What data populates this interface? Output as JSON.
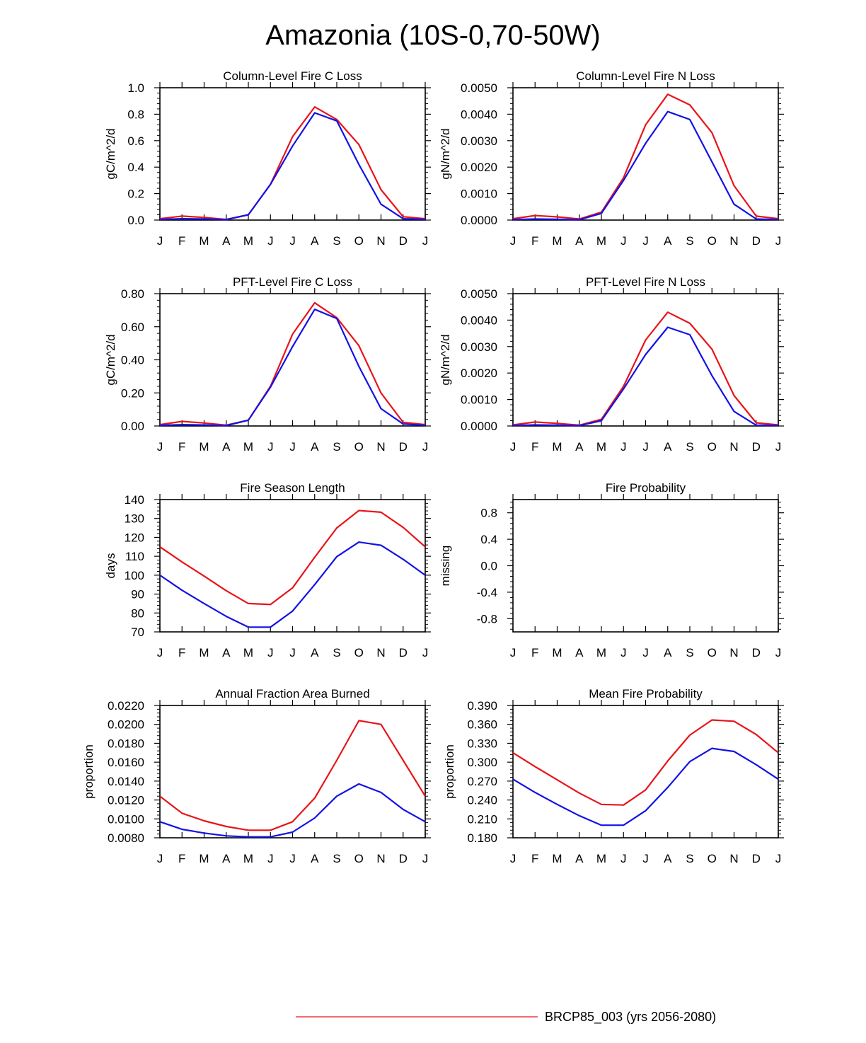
{
  "title": "Amazonia (10S-0,70-50W)",
  "colors": {
    "red": "#e8141a",
    "blue": "#1212e6",
    "axis": "#000000"
  },
  "legend": {
    "label": "BRCP85_003 (yrs 2056-2080)",
    "color": "#e8141a"
  },
  "chart_data": [
    {
      "id": "col-c-loss",
      "type": "line",
      "title": "Column-Level Fire C Loss",
      "ylabel": "gC/m^2/d",
      "xlabel": "",
      "categories": [
        "J",
        "F",
        "M",
        "A",
        "M",
        "J",
        "J",
        "A",
        "S",
        "O",
        "N",
        "D",
        "J"
      ],
      "ylim": [
        0,
        1.0
      ],
      "yticks": [
        "0.0",
        "0.2",
        "0.4",
        "0.6",
        "0.8",
        "1.0"
      ],
      "series": [
        {
          "name": "red",
          "color": "#e8141a",
          "values": [
            0.01,
            0.03,
            0.02,
            0.005,
            0.04,
            0.27,
            0.63,
            0.855,
            0.76,
            0.57,
            0.23,
            0.025,
            0.01
          ]
        },
        {
          "name": "blue",
          "color": "#1212e6",
          "values": [
            0.005,
            0.01,
            0.008,
            0.003,
            0.04,
            0.27,
            0.56,
            0.81,
            0.75,
            0.42,
            0.12,
            0.01,
            0.005
          ]
        }
      ]
    },
    {
      "id": "col-n-loss",
      "type": "line",
      "title": "Column-Level Fire N Loss",
      "ylabel": "gN/m^2/d",
      "xlabel": "",
      "categories": [
        "J",
        "F",
        "M",
        "A",
        "M",
        "J",
        "J",
        "A",
        "S",
        "O",
        "N",
        "D",
        "J"
      ],
      "ylim": [
        0,
        0.005
      ],
      "yticks": [
        "0.0000",
        "0.0010",
        "0.0020",
        "0.0030",
        "0.0040",
        "0.0050"
      ],
      "series": [
        {
          "name": "red",
          "color": "#e8141a",
          "values": [
            5e-05,
            0.00017,
            0.00012,
            4e-05,
            0.0003,
            0.0016,
            0.0036,
            0.00475,
            0.00435,
            0.0033,
            0.0013,
            0.00015,
            5e-05
          ]
        },
        {
          "name": "blue",
          "color": "#1212e6",
          "values": [
            2e-05,
            4e-05,
            3e-05,
            1e-05,
            0.00025,
            0.0015,
            0.0029,
            0.0041,
            0.0038,
            0.0022,
            0.0006,
            4e-05,
            2e-05
          ]
        }
      ]
    },
    {
      "id": "pft-c-loss",
      "type": "line",
      "title": "PFT-Level Fire C Loss",
      "ylabel": "gC/m^2/d",
      "xlabel": "",
      "categories": [
        "J",
        "F",
        "M",
        "A",
        "M",
        "J",
        "J",
        "A",
        "S",
        "O",
        "N",
        "D",
        "J"
      ],
      "ylim": [
        0,
        0.8
      ],
      "yticks": [
        "0.00",
        "0.20",
        "0.40",
        "0.60",
        "0.80"
      ],
      "series": [
        {
          "name": "red",
          "color": "#e8141a",
          "values": [
            0.008,
            0.028,
            0.018,
            0.005,
            0.035,
            0.24,
            0.555,
            0.745,
            0.655,
            0.485,
            0.2,
            0.022,
            0.008
          ]
        },
        {
          "name": "blue",
          "color": "#1212e6",
          "values": [
            0.004,
            0.008,
            0.006,
            0.002,
            0.035,
            0.235,
            0.48,
            0.705,
            0.65,
            0.36,
            0.105,
            0.012,
            0.004
          ]
        }
      ]
    },
    {
      "id": "pft-n-loss",
      "type": "line",
      "title": "PFT-Level Fire N Loss",
      "ylabel": "gN/m^2/d",
      "xlabel": "",
      "categories": [
        "J",
        "F",
        "M",
        "A",
        "M",
        "J",
        "J",
        "A",
        "S",
        "O",
        "N",
        "D",
        "J"
      ],
      "ylim": [
        0,
        0.005
      ],
      "yticks": [
        "0.0000",
        "0.0010",
        "0.0020",
        "0.0030",
        "0.0040",
        "0.0050"
      ],
      "series": [
        {
          "name": "red",
          "color": "#e8141a",
          "values": [
            4e-05,
            0.00015,
            0.0001,
            3e-05,
            0.00025,
            0.0015,
            0.00325,
            0.0043,
            0.00388,
            0.0029,
            0.00115,
            0.00012,
            4e-05
          ]
        },
        {
          "name": "blue",
          "color": "#1212e6",
          "values": [
            2e-05,
            4e-05,
            3e-05,
            1e-05,
            0.0002,
            0.0014,
            0.0027,
            0.00373,
            0.00345,
            0.0019,
            0.00055,
            3e-05,
            2e-05
          ]
        }
      ]
    },
    {
      "id": "fire-season",
      "type": "line",
      "title": "Fire Season Length",
      "ylabel": "days",
      "xlabel": "",
      "categories": [
        "J",
        "F",
        "M",
        "A",
        "M",
        "J",
        "J",
        "A",
        "S",
        "O",
        "N",
        "D",
        "J"
      ],
      "ylim": [
        70,
        140
      ],
      "yticks": [
        "70",
        "80",
        "90",
        "100",
        "110",
        "120",
        "130",
        "140"
      ],
      "series": [
        {
          "name": "red",
          "color": "#e8141a",
          "values": [
            115,
            107,
            99.5,
            91.8,
            85,
            84.5,
            93.3,
            109.5,
            125,
            134.2,
            133.3,
            125.3,
            115
          ]
        },
        {
          "name": "blue",
          "color": "#1212e6",
          "values": [
            100,
            92,
            85,
            78.2,
            72.5,
            72.5,
            81,
            95,
            109.8,
            117.5,
            115.8,
            108.4,
            100
          ]
        }
      ]
    },
    {
      "id": "fire-prob",
      "type": "line",
      "title": "Fire Probability",
      "ylabel": "missing",
      "xlabel": "",
      "categories": [
        "J",
        "F",
        "M",
        "A",
        "M",
        "J",
        "J",
        "A",
        "S",
        "O",
        "N",
        "D",
        "J"
      ],
      "ylim": [
        -1,
        1
      ],
      "yticks": [
        "-0.8",
        "-0.4",
        "0.0",
        "0.4",
        "0.8"
      ],
      "series": []
    },
    {
      "id": "annual-frac",
      "type": "line",
      "title": "Annual Fraction Area Burned",
      "ylabel": "proportion",
      "xlabel": "",
      "categories": [
        "J",
        "F",
        "M",
        "A",
        "M",
        "J",
        "J",
        "A",
        "S",
        "O",
        "N",
        "D",
        "J"
      ],
      "ylim": [
        0.008,
        0.022
      ],
      "yticks": [
        "0.0080",
        "0.0100",
        "0.0120",
        "0.0140",
        "0.0160",
        "0.0180",
        "0.0200",
        "0.0220"
      ],
      "series": [
        {
          "name": "red",
          "color": "#e8141a",
          "values": [
            0.0124,
            0.0106,
            0.0098,
            0.0092,
            0.0088,
            0.0088,
            0.0097,
            0.0122,
            0.0162,
            0.0204,
            0.02,
            0.0162,
            0.0124
          ]
        },
        {
          "name": "blue",
          "color": "#1212e6",
          "values": [
            0.0097,
            0.0089,
            0.0085,
            0.0082,
            0.0081,
            0.0081,
            0.0086,
            0.0101,
            0.0124,
            0.0137,
            0.0128,
            0.011,
            0.0097
          ]
        }
      ]
    },
    {
      "id": "mean-fire-prob",
      "type": "line",
      "title": "Mean Fire Probability",
      "ylabel": "proportion",
      "xlabel": "",
      "categories": [
        "J",
        "F",
        "M",
        "A",
        "M",
        "J",
        "J",
        "A",
        "S",
        "O",
        "N",
        "D",
        "J"
      ],
      "ylim": [
        0.18,
        0.39
      ],
      "yticks": [
        "0.180",
        "0.210",
        "0.240",
        "0.270",
        "0.300",
        "0.330",
        "0.360",
        "0.390"
      ],
      "series": [
        {
          "name": "red",
          "color": "#e8141a",
          "values": [
            0.315,
            0.293,
            0.272,
            0.251,
            0.233,
            0.232,
            0.256,
            0.302,
            0.343,
            0.367,
            0.365,
            0.344,
            0.315
          ]
        },
        {
          "name": "blue",
          "color": "#1212e6",
          "values": [
            0.273,
            0.252,
            0.233,
            0.215,
            0.2,
            0.2,
            0.223,
            0.26,
            0.301,
            0.322,
            0.317,
            0.296,
            0.273
          ]
        }
      ]
    }
  ]
}
